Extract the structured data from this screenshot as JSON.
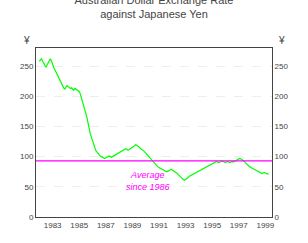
{
  "chart_data": {
    "type": "line",
    "title": "Australian Dollar Exchange Rate\nagainst Japanese Yen",
    "ylabel": "¥",
    "y2label": "¥",
    "x": [
      1982.0,
      1982.08,
      1982.17,
      1982.25,
      1982.33,
      1982.42,
      1982.5,
      1982.58,
      1982.67,
      1982.75,
      1982.83,
      1982.92,
      1983.0,
      1983.08,
      1983.17,
      1983.25,
      1983.33,
      1983.42,
      1983.5,
      1983.58,
      1983.67,
      1983.75,
      1983.83,
      1983.92,
      1984.0,
      1984.08,
      1984.17,
      1984.25,
      1984.33,
      1984.42,
      1984.5,
      1984.58,
      1984.67,
      1984.75,
      1984.83,
      1984.92,
      1985.0,
      1985.08,
      1985.17,
      1985.25,
      1985.33,
      1985.42,
      1985.5,
      1985.58,
      1985.67,
      1985.75,
      1985.83,
      1985.92,
      1986.0,
      1986.08,
      1986.17,
      1986.25,
      1986.33,
      1986.42,
      1986.5,
      1986.58,
      1986.67,
      1986.75,
      1986.83,
      1986.92,
      1987.0,
      1987.08,
      1987.17,
      1987.25,
      1987.33,
      1987.42,
      1987.5,
      1987.58,
      1987.67,
      1987.75,
      1987.83,
      1987.92,
      1988.0,
      1988.08,
      1988.17,
      1988.25,
      1988.33,
      1988.42,
      1988.5,
      1988.58,
      1988.67,
      1988.75,
      1988.83,
      1988.92,
      1989.0,
      1989.08,
      1989.17,
      1989.25,
      1989.33,
      1989.42,
      1989.5,
      1989.58,
      1989.67,
      1989.75,
      1989.83,
      1989.92,
      1990.0,
      1990.08,
      1990.17,
      1990.25,
      1990.33,
      1990.42,
      1990.5,
      1990.58,
      1990.67,
      1990.75,
      1990.83,
      1990.92,
      1991.0,
      1991.08,
      1991.17,
      1991.25,
      1991.33,
      1991.42,
      1991.5,
      1991.58,
      1991.67,
      1991.75,
      1991.83,
      1991.92,
      1992.0,
      1992.08,
      1992.17,
      1992.25,
      1992.33,
      1992.42,
      1992.5,
      1992.58,
      1992.67,
      1992.75,
      1992.83,
      1992.92,
      1993.0,
      1993.08,
      1993.17,
      1993.25,
      1993.33,
      1993.42,
      1993.5,
      1993.58,
      1993.67,
      1993.75,
      1993.83,
      1993.92,
      1994.0,
      1994.08,
      1994.17,
      1994.25,
      1994.33,
      1994.42,
      1994.5,
      1994.58,
      1994.67,
      1994.75,
      1994.83,
      1994.92,
      1995.0,
      1995.08,
      1995.17,
      1995.25,
      1995.33,
      1995.42,
      1995.5,
      1995.58,
      1995.67,
      1995.75,
      1995.83,
      1995.92,
      1996.0,
      1996.08,
      1996.17,
      1996.25,
      1996.33,
      1996.42,
      1996.5,
      1996.58,
      1996.67,
      1996.75,
      1996.83,
      1996.92,
      1997.0,
      1997.08,
      1997.17,
      1997.25,
      1997.33,
      1997.42,
      1997.5,
      1997.58,
      1997.67,
      1997.75,
      1997.83,
      1997.92,
      1998.0,
      1998.08,
      1998.17,
      1998.25,
      1998.33,
      1998.42,
      1998.5,
      1998.58,
      1998.67,
      1998.75,
      1998.83,
      1998.92,
      1999.0,
      1999.08,
      1999.17,
      1999.25
    ],
    "series": [
      {
        "color": "#00ff00",
        "values": [
          258,
          260,
          262,
          258,
          255,
          252,
          248,
          252,
          256,
          260,
          262,
          258,
          252,
          248,
          244,
          240,
          236,
          232,
          228,
          224,
          220,
          216,
          214,
          212,
          216,
          218,
          216,
          215,
          213,
          214,
          212,
          210,
          213,
          212,
          211,
          210,
          208,
          204,
          197,
          192,
          186,
          180,
          172,
          165,
          155,
          145,
          138,
          132,
          126,
          120,
          115,
          110,
          108,
          105,
          103,
          101,
          100,
          99,
          98,
          97,
          98,
          99,
          100,
          101,
          100,
          99,
          100,
          101,
          102,
          103,
          104,
          105,
          106,
          107,
          109,
          110,
          111,
          112,
          113,
          112,
          111,
          112,
          113,
          114,
          115,
          116,
          118,
          120,
          119,
          118,
          116,
          114,
          113,
          111,
          110,
          108,
          106,
          103,
          101,
          99,
          97,
          95,
          93,
          91,
          89,
          87,
          85,
          83,
          82,
          81,
          80,
          79,
          78,
          77,
          76,
          75,
          76,
          77,
          78,
          79,
          78,
          77,
          76,
          75,
          73,
          71,
          69,
          67,
          65,
          63,
          62,
          61,
          62,
          63,
          65,
          67,
          68,
          69,
          70,
          71,
          72,
          73,
          74,
          75,
          76,
          77,
          78,
          79,
          80,
          81,
          82,
          83,
          84,
          85,
          86,
          87,
          88,
          89,
          90,
          91,
          92,
          91,
          90,
          91,
          92,
          93,
          92,
          91,
          90,
          91,
          92,
          91,
          90,
          91,
          92,
          91,
          92,
          93,
          94,
          95,
          96,
          97,
          96,
          95,
          94,
          92,
          90,
          88,
          86,
          84,
          83,
          82,
          81,
          80,
          79,
          78,
          77,
          76,
          75,
          74,
          73,
          72,
          73,
          74,
          73,
          72,
          71,
          72
        ]
      }
    ],
    "hlines": [
      {
        "value": 93,
        "color": "#ff00ff"
      }
    ],
    "annotations": [
      {
        "text": "Average\nsince 1986",
        "x": 1990.2,
        "y": 81,
        "color": "#ff00ff"
      }
    ],
    "xlim": [
      1981.75,
      1999.5
    ],
    "xticks": [
      1983,
      1985,
      1987,
      1989,
      1991,
      1993,
      1995,
      1997,
      1999
    ],
    "ylim": [
      0,
      280
    ],
    "yticks": [
      0,
      50,
      100,
      150,
      200,
      250
    ],
    "y2lim": [
      0,
      280
    ],
    "y2ticks": [
      0,
      50,
      100,
      150,
      200,
      250
    ],
    "grid": true
  }
}
